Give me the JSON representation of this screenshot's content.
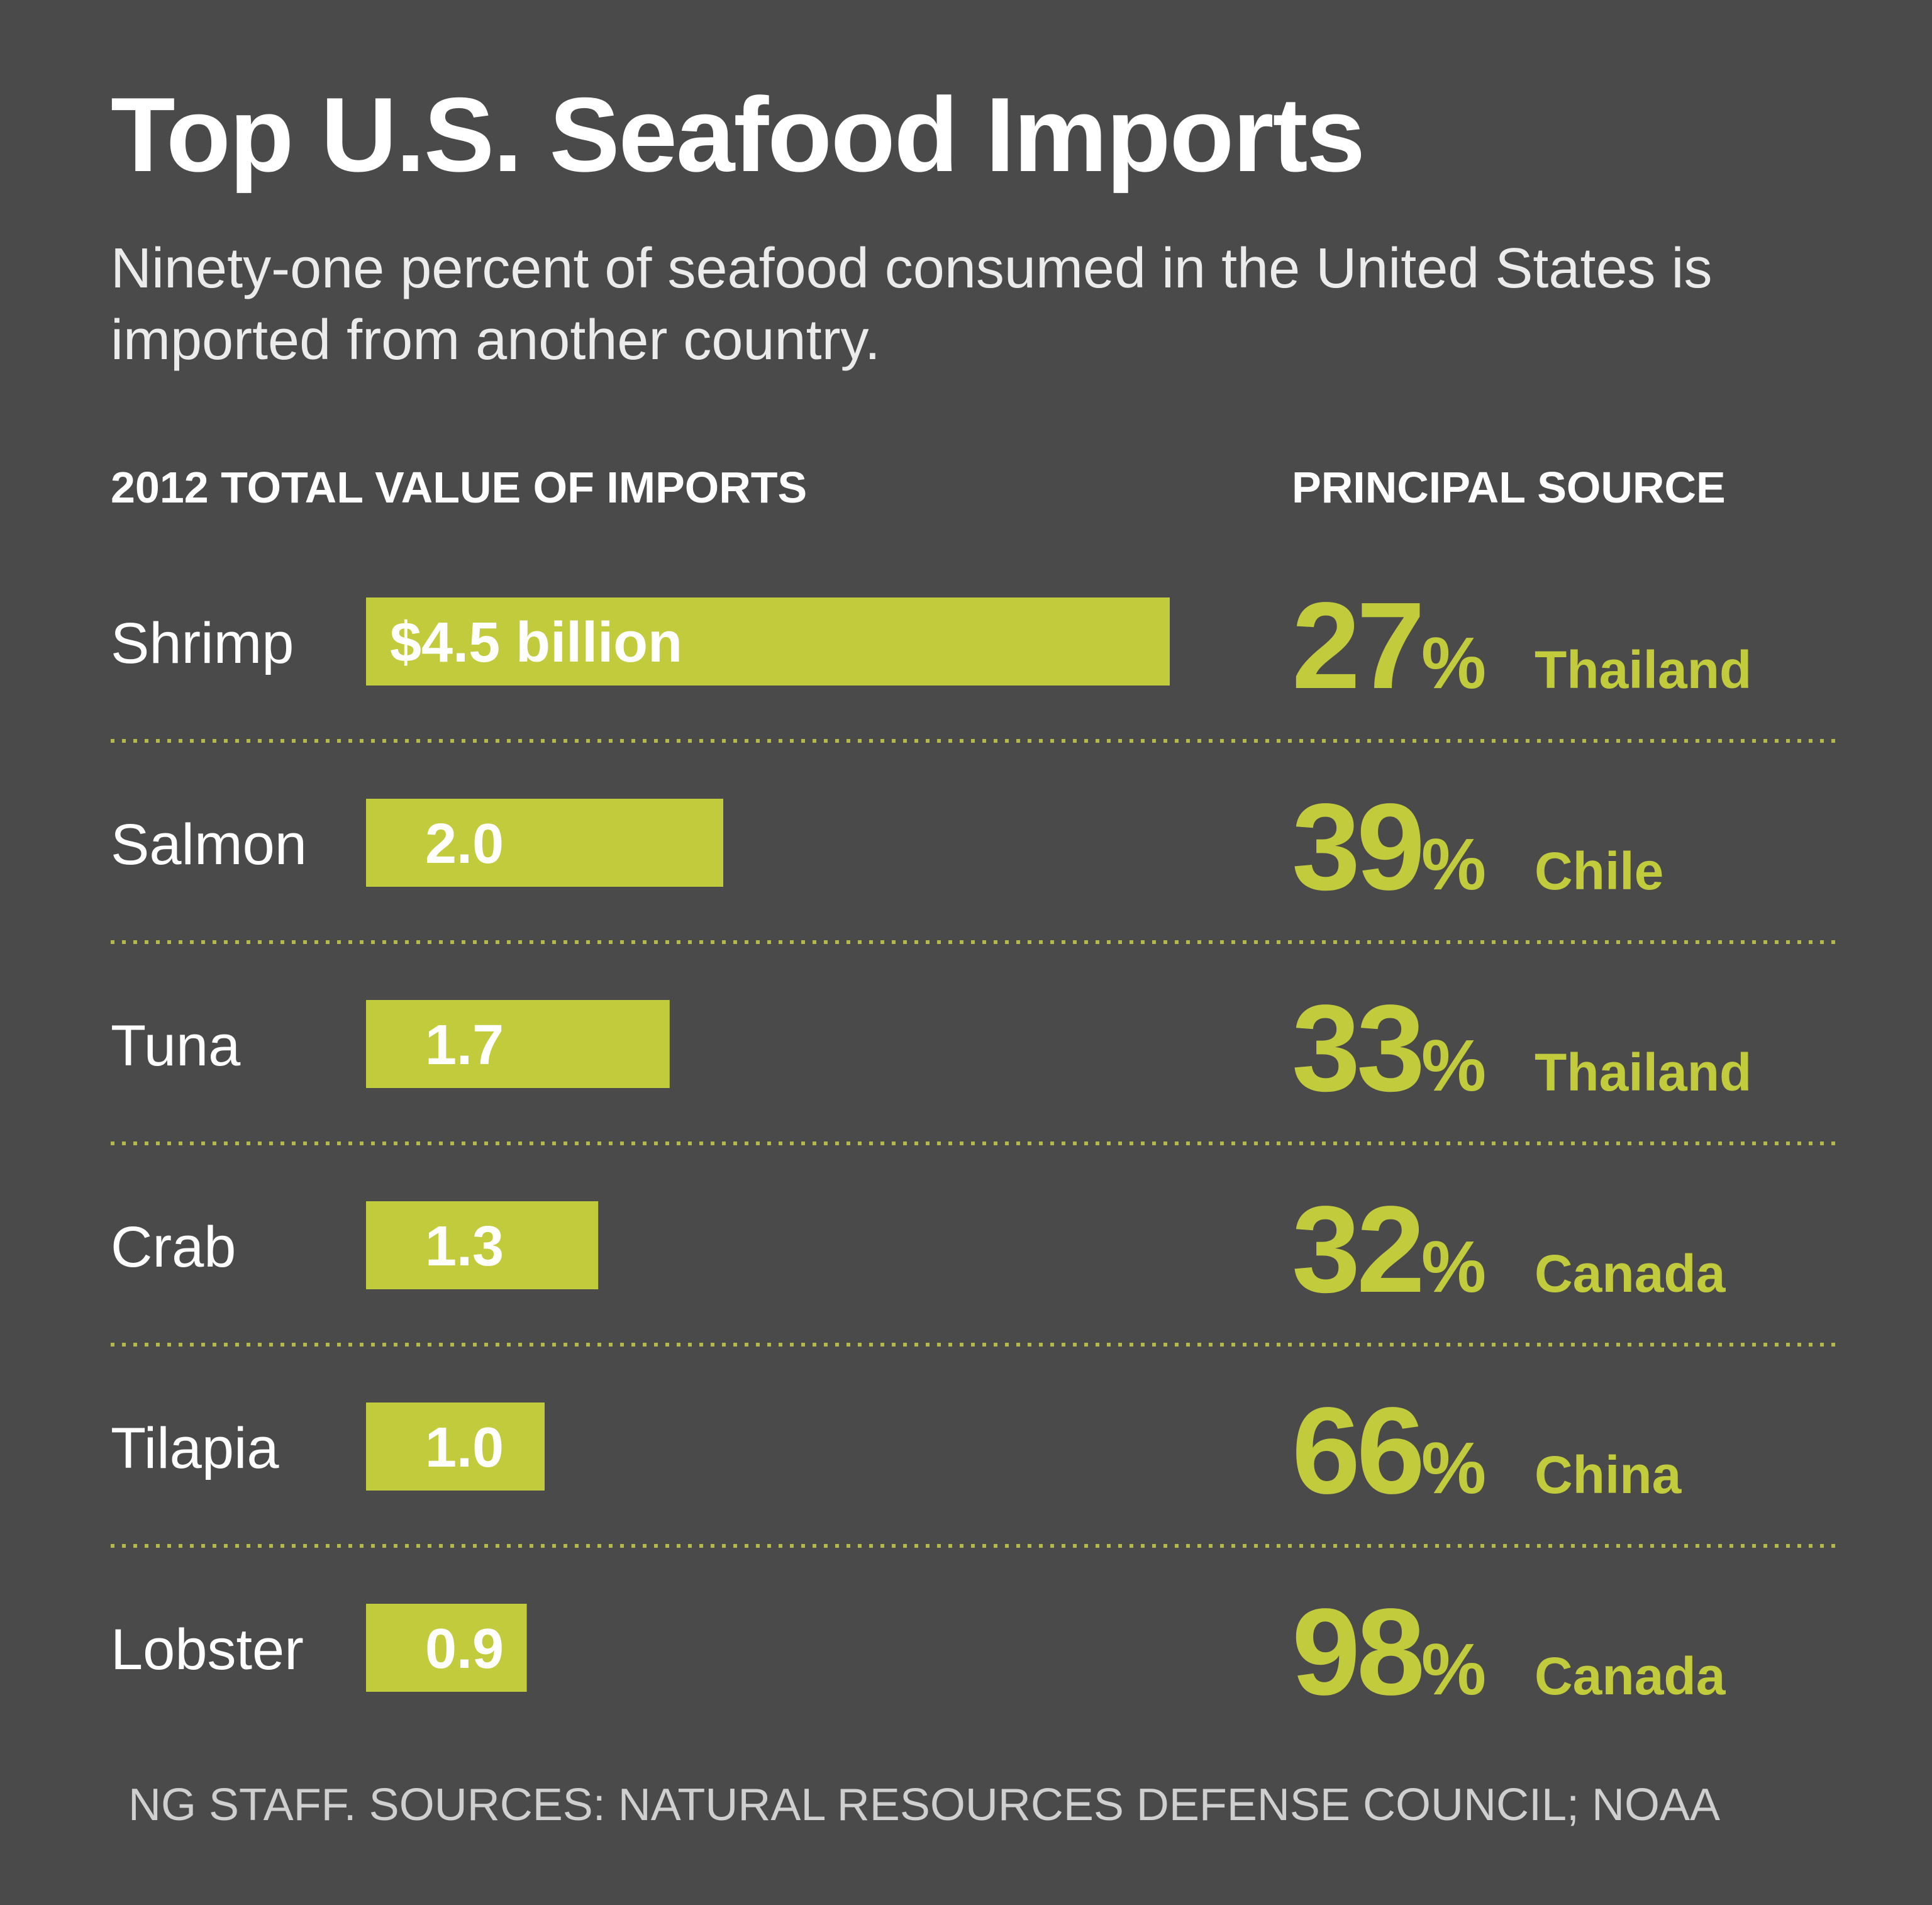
{
  "chart_data": {
    "type": "bar",
    "title": "Top U.S. Seafood Imports",
    "subtitle": "Ninety-one percent of seafood consumed in the United States is imported from another country.",
    "column_headers": {
      "value": "2012 TOTAL VALUE OF IMPORTS",
      "source": "PRINCIPAL SOURCE"
    },
    "categories": [
      "Shrimp",
      "Salmon",
      "Tuna",
      "Crab",
      "Tilapia",
      "Lobster"
    ],
    "values": [
      4.5,
      2.0,
      1.7,
      1.3,
      1.0,
      0.9
    ],
    "value_labels": [
      "$4.5 billion",
      "2.0",
      "1.7",
      "1.3",
      "1.0",
      "0.9"
    ],
    "unit": "billion dollars",
    "principal_source_percent": [
      27,
      39,
      33,
      32,
      66,
      98
    ],
    "principal_source_country": [
      "Thailand",
      "Chile",
      "Thailand",
      "Canada",
      "China",
      "Canada"
    ],
    "percent_symbol": "%",
    "colors": {
      "background": "#4a4a4a",
      "bar": "#c2cb3c",
      "text": "#ffffff",
      "divider": "#b7b84a"
    },
    "grid": false,
    "legend": "none"
  },
  "credit": "NG STAFF. SOURCES: NATURAL RESOURCES DEFENSE COUNCIL; NOAA"
}
